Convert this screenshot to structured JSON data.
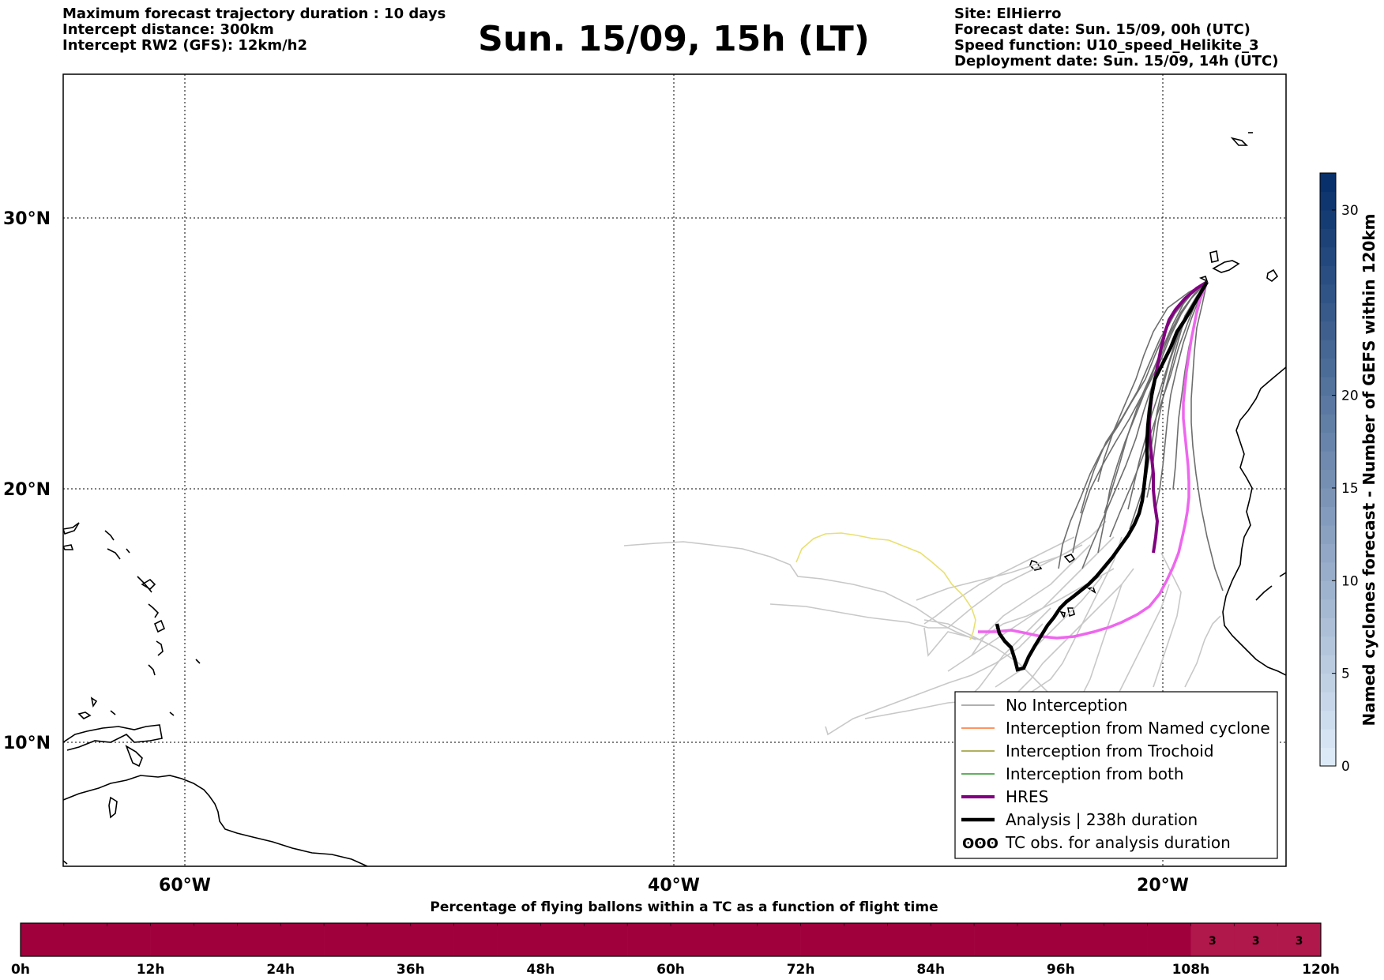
{
  "header": {
    "left_lines": [
      "Maximum forecast trajectory duration : 10 days",
      "Intercept distance: 300km",
      "Intercept RW2 (GFS):  12km/h2"
    ],
    "title": "Sun. 15/09, 15h (LT)",
    "right_lines": [
      "Site: ElHierro",
      "Forecast date: Sun. 15/09, 00h (UTC)",
      "Speed function: U10_speed_Helikite_3",
      "Deployment date: Sun. 15/09, 14h (UTC)"
    ]
  },
  "map": {
    "lat_labels": [
      "30°N",
      "20°N",
      "10°N"
    ],
    "lon_labels": [
      "60°W",
      "40°W",
      "20°W"
    ],
    "gridlines": true,
    "colors": {
      "no_interception": "#808080",
      "ensemble_light": "#c8c8c8",
      "named_cyclone": "#ff5500",
      "trochoid": "#808000",
      "both": "#008000",
      "hres": "#800080",
      "hres_light": "#ee66ee",
      "analysis": "#000000",
      "yellow_track": "#e8e070"
    }
  },
  "legend": {
    "items": [
      {
        "label": "No Interception",
        "color": "#808080",
        "width": 1.2
      },
      {
        "label": "Interception from Named cyclone",
        "color": "#ff5500",
        "width": 1.2
      },
      {
        "label": "Interception from Trochoid",
        "color": "#808000",
        "width": 1.2
      },
      {
        "label": "Interception from both",
        "color": "#008000",
        "width": 1.2
      },
      {
        "label": "HRES",
        "color": "#800080",
        "width": 4
      },
      {
        "label": "Analysis | 238h duration",
        "color": "#000000",
        "width": 4.5
      },
      {
        "label": "TC obs. for analysis duration",
        "symbol": "ʘʘʘ"
      }
    ]
  },
  "colorbar": {
    "label": "Named cyclones forecast - Number of GEFS within 120km",
    "ticks": [
      "0",
      "5",
      "10",
      "15",
      "20",
      "30"
    ],
    "min": 0,
    "max": 32
  },
  "bottom_bar": {
    "title": "Percentage of flying ballons within a TC as a function of flight time",
    "ticks": [
      "0h",
      "12h",
      "24h",
      "36h",
      "48h",
      "60h",
      "72h",
      "84h",
      "96h",
      "108h",
      "120h"
    ],
    "cells_per_tick": 3,
    "fill_color": "#a0003c",
    "light_fill_color": "#b0174a",
    "tail_values": [
      "3",
      "3",
      "3"
    ]
  }
}
